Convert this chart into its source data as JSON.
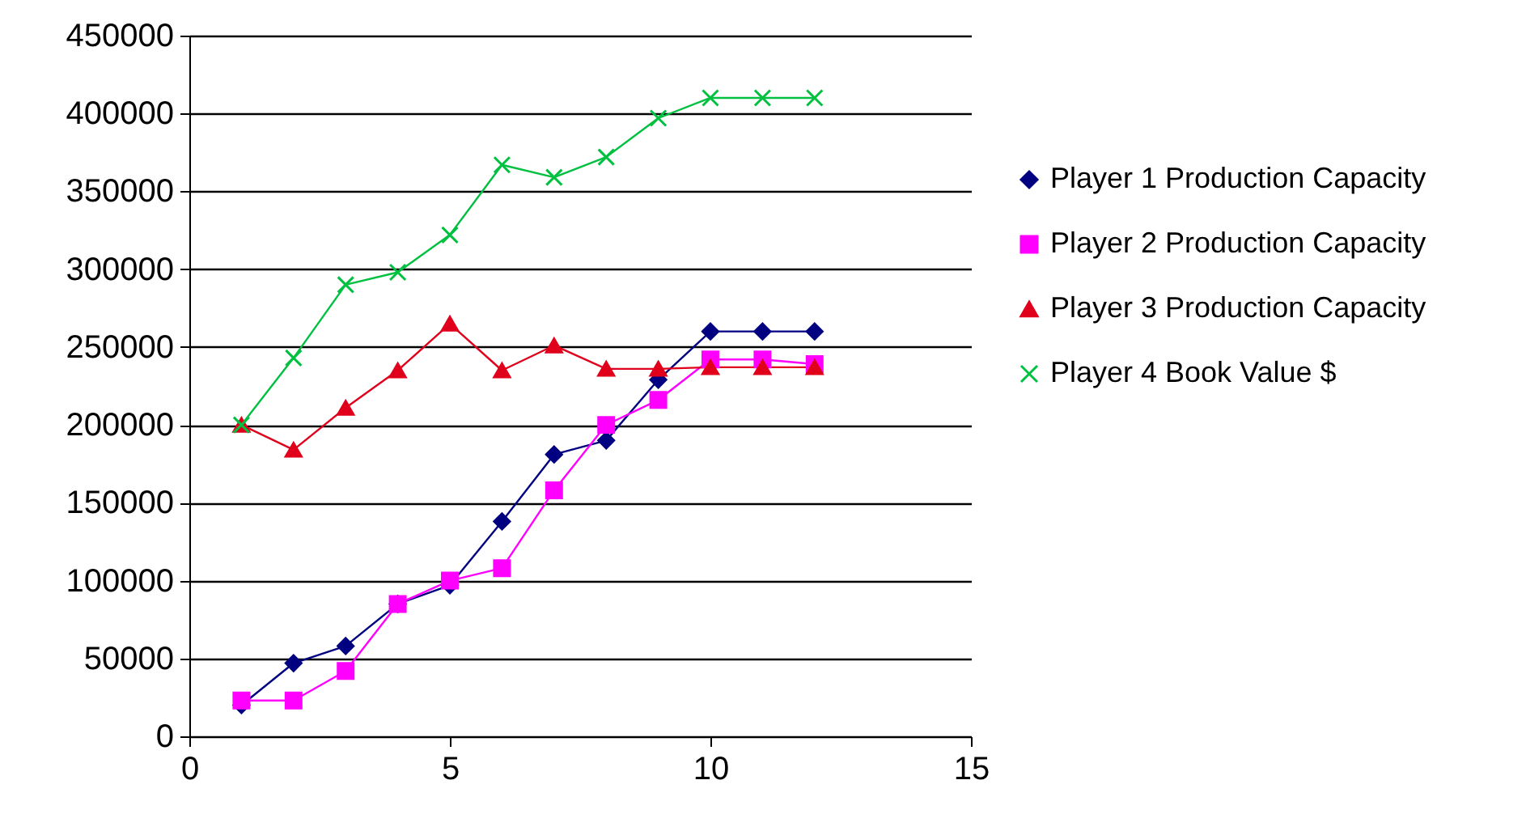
{
  "chart_data": {
    "type": "line",
    "x": [
      1,
      2,
      3,
      4,
      5,
      6,
      7,
      8,
      9,
      10,
      11,
      12
    ],
    "series": [
      {
        "name": "Player 1 Production Capacity",
        "color": "#000080",
        "marker": "diamond",
        "values": [
          20000,
          47000,
          58000,
          85000,
          97000,
          138000,
          181000,
          190000,
          229000,
          260000,
          260000,
          260000
        ]
      },
      {
        "name": "Player 2 Production Capacity",
        "color": "#ff00ff",
        "marker": "square",
        "values": [
          23000,
          23000,
          42000,
          85000,
          100000,
          108000,
          158000,
          200000,
          216000,
          242000,
          242000,
          239000
        ]
      },
      {
        "name": "Player 3 Production Capacity",
        "color": "#e0001b",
        "marker": "triangle",
        "values": [
          200000,
          184000,
          211000,
          235000,
          265000,
          235000,
          251000,
          236000,
          236000,
          237000,
          237000,
          237000
        ]
      },
      {
        "name": "Player 4 Book Value $",
        "color": "#00c040",
        "marker": "cross",
        "values": [
          200000,
          243000,
          290000,
          298000,
          322000,
          367000,
          359000,
          372000,
          397000,
          410000,
          410000,
          410000
        ]
      }
    ],
    "xlim": [
      0,
      15
    ],
    "xticks": [
      0,
      5,
      10,
      15
    ],
    "ylim": [
      0,
      450000
    ],
    "yticks": [
      0,
      50000,
      100000,
      150000,
      200000,
      250000,
      300000,
      350000,
      400000,
      450000
    ],
    "grid": "y",
    "legend": "right"
  }
}
